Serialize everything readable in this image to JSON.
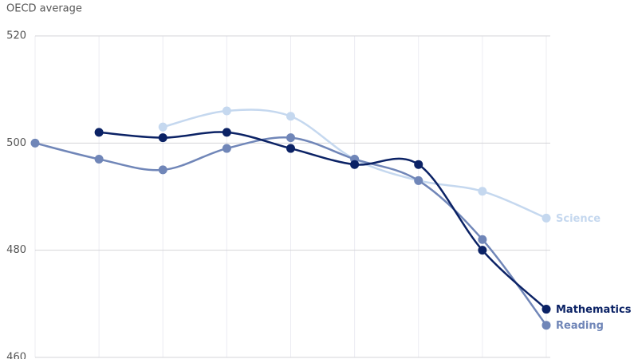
{
  "chart_data": {
    "type": "line",
    "y_label": "OECD average",
    "categories": [
      null,
      null,
      null,
      null,
      null,
      null,
      null,
      null,
      null
    ],
    "series": [
      {
        "name": "Science",
        "color": "#c5d8ef",
        "values": [
          null,
          null,
          503,
          506,
          505,
          497,
          493,
          491,
          486
        ]
      },
      {
        "name": "Reading",
        "color": "#7086b8",
        "values": [
          500,
          497,
          495,
          499,
          501,
          497,
          493,
          482,
          466
        ]
      },
      {
        "name": "Mathematics",
        "color": "#0b2265",
        "values": [
          null,
          502,
          501,
          502,
          499,
          496,
          496,
          480,
          469
        ]
      }
    ],
    "ylim": [
      460,
      520
    ],
    "yticks": [
      460,
      480,
      500,
      520
    ],
    "grid": true
  }
}
